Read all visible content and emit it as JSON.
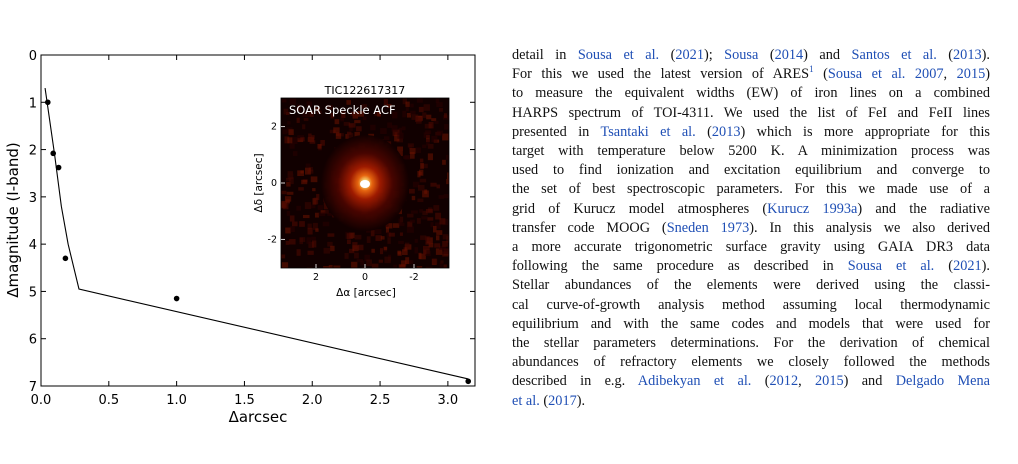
{
  "chart_data": [
    {
      "type": "line",
      "title": "",
      "xlabel": "Δarcsec",
      "ylabel": "Δmagnitude (I-band)",
      "xlim": [
        0.0,
        3.2
      ],
      "ylim": [
        7,
        0
      ],
      "y_inverted": true,
      "x_ticks": [
        "0.0",
        "0.5",
        "1.0",
        "1.5",
        "2.0",
        "2.5",
        "3.0"
      ],
      "y_ticks": [
        "0",
        "1",
        "2",
        "3",
        "4",
        "5",
        "6",
        "7"
      ],
      "series": [
        {
          "kind": "line",
          "x": [
            0.03,
            0.06,
            0.1,
            0.15,
            0.2,
            0.28,
            3.15
          ],
          "y": [
            0.7,
            1.3,
            2.1,
            3.2,
            4.0,
            4.95,
            6.85
          ]
        },
        {
          "kind": "scatter",
          "x": [
            0.05,
            0.09,
            0.13,
            0.18,
            1.0,
            3.15
          ],
          "y": [
            1.0,
            2.08,
            2.38,
            4.3,
            5.15,
            6.9
          ]
        }
      ]
    },
    {
      "type": "heatmap",
      "title": "TIC122617317",
      "annotation": "SOAR Speckle ACF",
      "xlabel": "Δα [arcsec]",
      "ylabel": "Δδ [arcsec]",
      "x_ticks": [
        "2",
        "0",
        "-2"
      ],
      "y_ticks": [
        "2",
        "0",
        "-2"
      ],
      "colormap": [
        "#000000",
        "#3a0000",
        "#8a1300",
        "#d84a00",
        "#ffd66b",
        "#ffffff"
      ]
    }
  ],
  "text": {
    "l1": {
      "a": "detail in ",
      "c1": "Sousa et al.",
      "b": " (",
      "c2": "2021",
      "c": "); ",
      "c3": "Sousa",
      "d": " (",
      "c4": "2014",
      "e": ") and ",
      "c5": "Santos et al.",
      "f": " (",
      "c6": "2013",
      "g": ")."
    },
    "l2": {
      "a": "For this we used the latest version of ARES",
      "sup": "1",
      "b": " (",
      "c1": "Sousa et al. 2007",
      "c": ", ",
      "c2": "2015",
      "d": ")"
    },
    "l3": "to measure the equivalent widths (EW) of iron lines on a combined",
    "l4": "HARPS spectrum of TOI-4311. We used the list of FeI and FeII lines",
    "l5": {
      "a": "presented in ",
      "c1": "Tsantaki et al.",
      "b": " (",
      "c2": "2013",
      "c": ") which is more appropriate for this"
    },
    "l6": "target with temperature below 5200 K. A minimization process was",
    "l7": "used to find ionization and excitation equilibrium and converge to",
    "l8": "the set of best spectroscopic parameters. For this we made use of a",
    "l9": {
      "a": "grid of Kurucz model atmospheres (",
      "c1": "Kurucz 1993a",
      "b": ") and the radiative"
    },
    "l10": {
      "a": "transfer code MOOG (",
      "c1": "Sneden 1973",
      "b": "). In this analysis we also derived"
    },
    "l11": "a more accurate trigonometric surface gravity using GAIA DR3 data",
    "l12": {
      "a": "following the same procedure as described in ",
      "c1": "Sousa et al.",
      "b": " (",
      "c2": "2021",
      "c": ")."
    },
    "l13": "Stellar abundances of the elements were derived using the classi-",
    "l14": "cal curve-of-growth analysis method assuming local thermodynamic",
    "l15": "equilibrium and with the same codes and models that were used for",
    "l16": "the stellar parameters determinations. For the derivation of chemical",
    "l17": "abundances of refractory elements we closely followed the methods",
    "l18": {
      "a": "described in e.g. ",
      "c1": "Adibekyan et al.",
      "b": " (",
      "c2": "2012",
      "c": ", ",
      "c3": "2015",
      "d": ") and ",
      "c4": "Delgado Mena"
    },
    "l19": {
      "c1": "et al.",
      "a": " (",
      "c2": "2017",
      "b": ")."
    }
  }
}
